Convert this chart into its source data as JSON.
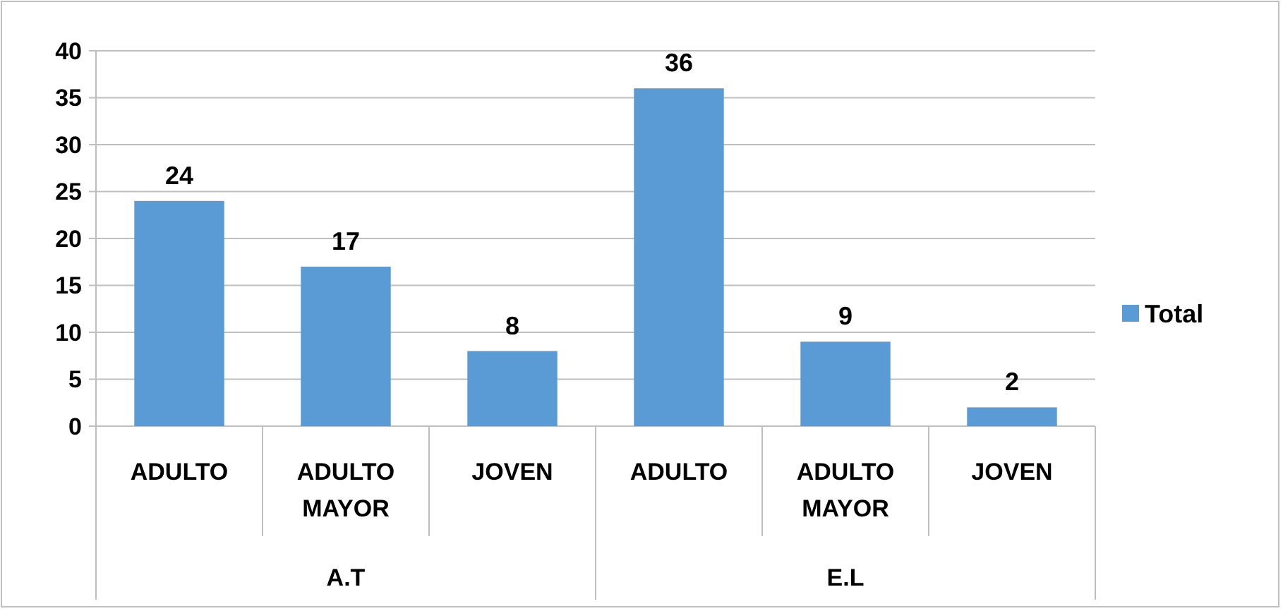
{
  "chart_data": {
    "type": "bar",
    "categories": [
      "ADULTO",
      "ADULTO MAYOR",
      "JOVEN",
      "ADULTO",
      "ADULTO MAYOR",
      "JOVEN"
    ],
    "series": [
      {
        "name": "Total",
        "color": "#5b9bd5",
        "values": [
          24,
          17,
          8,
          36,
          9,
          2
        ]
      }
    ],
    "ylim": [
      0,
      40
    ],
    "yticks": [
      0,
      5,
      10,
      15,
      20,
      25,
      30,
      35,
      40
    ],
    "grid": "y",
    "legend": "right",
    "data_labels": true,
    "annotations": [
      "A.T",
      "E.L"
    ]
  }
}
